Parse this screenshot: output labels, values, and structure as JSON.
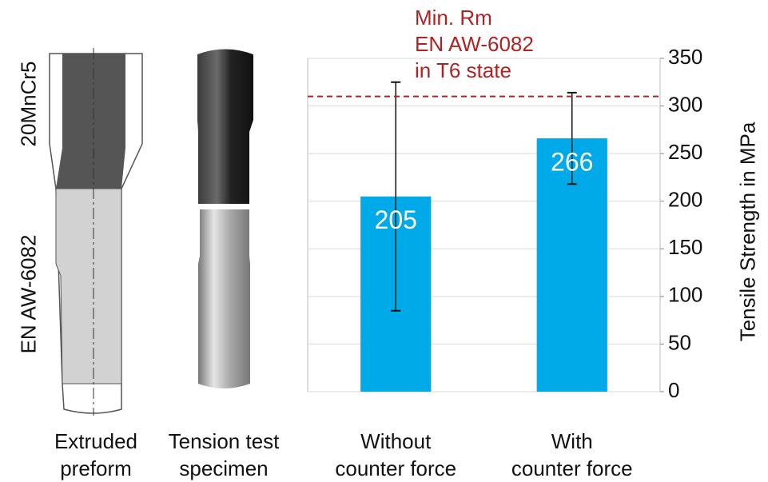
{
  "chart_data": {
    "type": "bar",
    "categories": [
      "Without\ncounter force",
      "With\ncounter force"
    ],
    "values": [
      205,
      266
    ],
    "errors": [
      120,
      48
    ],
    "color": "#00a9e8",
    "ylim": [
      0,
      350
    ],
    "yticks": [
      0,
      50,
      100,
      150,
      200,
      250,
      300,
      350
    ],
    "y_label": "Tensile Strength in MPa",
    "grid": true,
    "reference_line": {
      "value": 310,
      "label": "Min. Rm\nEN AW-6082\nin T6 state",
      "color": "#b22222"
    }
  },
  "illustrations": {
    "preform": {
      "materials": [
        "20MnCr5",
        "EN AW-6082"
      ],
      "caption": "Extruded\npreform"
    },
    "specimen": {
      "caption": "Tension test\nspecimen"
    }
  }
}
